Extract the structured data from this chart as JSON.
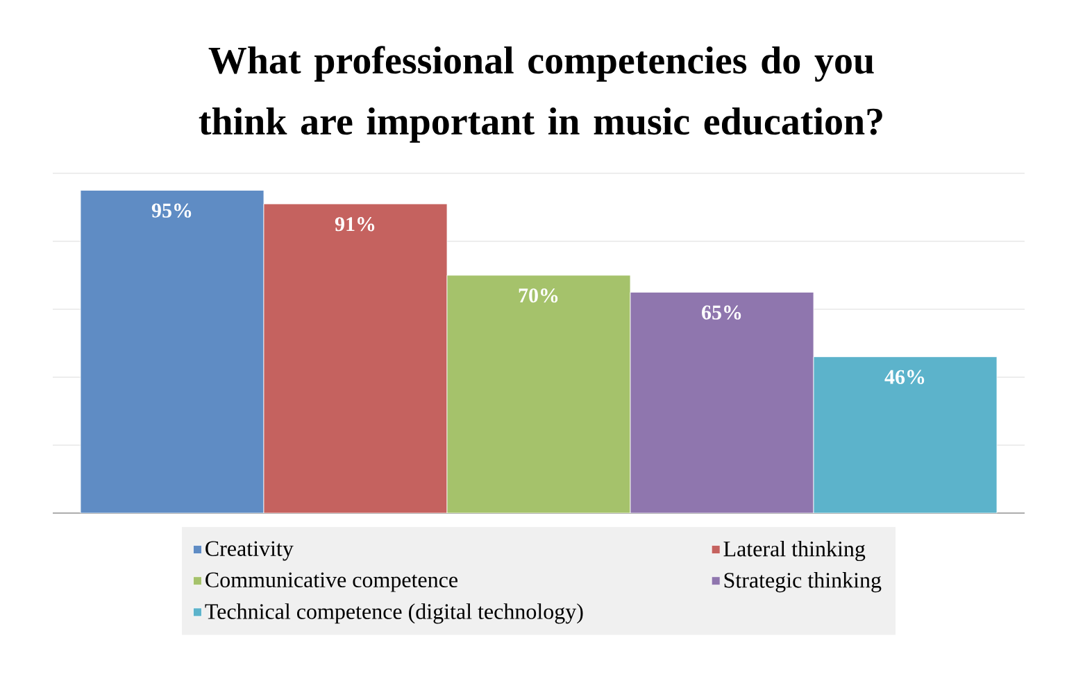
{
  "chart_data": {
    "type": "bar",
    "title": "What professional competencies do you think are important in music education?",
    "categories": [
      null
    ],
    "series": [
      {
        "name": "Creativity",
        "color": "#5f8cc4",
        "values": [
          95
        ],
        "value_labels": [
          "95%"
        ]
      },
      {
        "name": "Lateral thinking",
        "color": "#c5625f",
        "values": [
          91
        ],
        "value_labels": [
          "91%"
        ]
      },
      {
        "name": "Communicative competence",
        "color": "#a5c26b",
        "values": [
          70
        ],
        "value_labels": [
          "70%"
        ]
      },
      {
        "name": "Strategic thinking",
        "color": "#8f76ae",
        "values": [
          65
        ],
        "value_labels": [
          "65%"
        ]
      },
      {
        "name": "Technical competence (digital technology)",
        "color": "#5cb3cb",
        "values": [
          46
        ],
        "value_labels": [
          "46%"
        ]
      }
    ],
    "ylim": [
      0,
      100
    ],
    "yticks": [
      0,
      20,
      40,
      60,
      80,
      100
    ],
    "grid": "y",
    "tick_labels": false,
    "legend": "bottom"
  }
}
